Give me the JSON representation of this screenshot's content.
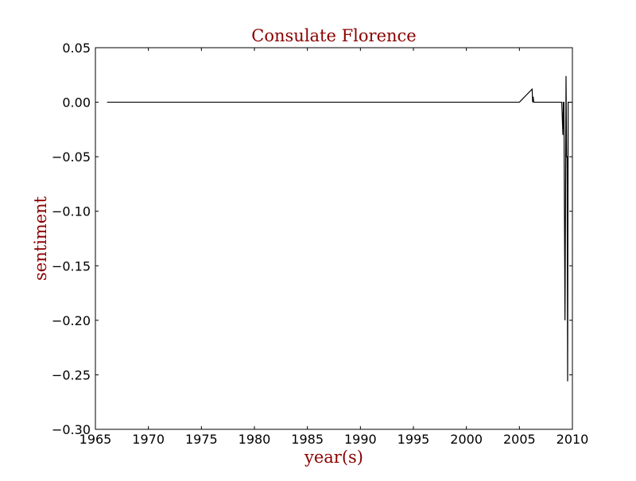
{
  "chart_data": {
    "type": "line",
    "title": "Consulate Florence",
    "xlabel": "year(s)",
    "ylabel": "sentiment",
    "xlim": [
      1965,
      2010
    ],
    "ylim": [
      -0.3,
      0.05
    ],
    "grid": false,
    "xticks": [
      1965,
      1970,
      1975,
      1980,
      1985,
      1990,
      1995,
      2000,
      2005,
      2010
    ],
    "yticks": [
      0.05,
      0.0,
      -0.05,
      -0.1,
      -0.15,
      -0.2,
      -0.25,
      -0.3
    ],
    "xtick_labels": [
      "1965",
      "1970",
      "1975",
      "1980",
      "1985",
      "1990",
      "1995",
      "2000",
      "2005",
      "2010"
    ],
    "ytick_labels": [
      "0.05",
      "0.00",
      "−0.05",
      "−0.10",
      "−0.15",
      "−0.20",
      "−0.25",
      "−0.30"
    ],
    "series": [
      {
        "color": "#000000",
        "x": [
          1966.1,
          2005.0,
          2006.2,
          2006.25,
          2006.3,
          2006.35,
          2009.0,
          2009.1,
          2009.15,
          2009.2,
          2009.3,
          2009.4,
          2009.45,
          2009.5,
          2009.55,
          2009.6,
          2009.7,
          2009.8,
          2010.0
        ],
        "y": [
          0.0,
          0.0,
          0.012,
          0.0,
          0.005,
          0.0,
          0.0,
          -0.03,
          0.0,
          0.0,
          -0.2,
          0.024,
          -0.05,
          -0.05,
          -0.256,
          0.0,
          0.0,
          0.0,
          0.0
        ]
      }
    ],
    "colors": {
      "title": "#8b0000",
      "axis_label": "#8b0000",
      "line": "#000000"
    }
  }
}
